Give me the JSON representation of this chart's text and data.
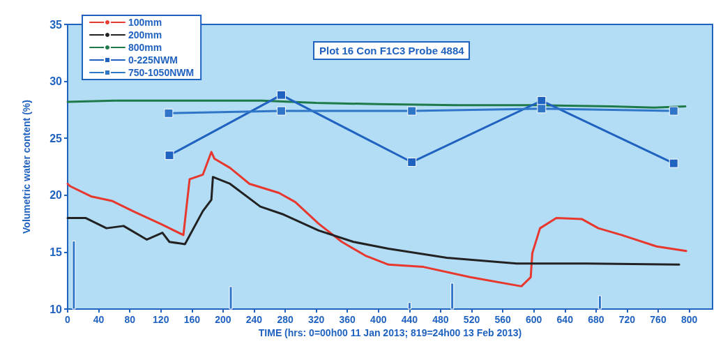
{
  "chart_data": {
    "type": "line",
    "title": "Plot 16 Con F1C3 Probe 4884",
    "xlabel": "TIME (hrs: 0=00h00 11 Jan 2013; 819=24h00 13 Feb 2013)",
    "ylabel": "Volumetric water content (%)",
    "xlim": [
      0,
      830
    ],
    "xticks": [
      0,
      40,
      80,
      120,
      160,
      200,
      240,
      280,
      320,
      360,
      400,
      440,
      480,
      520,
      560,
      600,
      640,
      680,
      720,
      760,
      800
    ],
    "ylim": [
      10,
      35
    ],
    "yticks": [
      10,
      15,
      20,
      25,
      30,
      35
    ],
    "grid": false,
    "legend": "top left",
    "marker": "none",
    "line_style": "solid",
    "series": [
      {
        "name": "100mm",
        "color": "#e8372c",
        "x": [
          0,
          3,
          30,
          57,
          84,
          122,
          149,
          157,
          174,
          185,
          189,
          209,
          234,
          272,
          293,
          323,
          353,
          383,
          413,
          458,
          518,
          584,
          596,
          598,
          608,
          629,
          662,
          683,
          713,
          758,
          796
        ],
        "values": [
          21.0,
          20.8,
          19.9,
          19.5,
          18.6,
          17.4,
          16.5,
          21.4,
          21.8,
          23.8,
          23.2,
          22.4,
          21.0,
          20.2,
          19.4,
          17.5,
          15.9,
          14.7,
          13.9,
          13.7,
          12.8,
          12.0,
          12.8,
          14.9,
          17.1,
          18.0,
          17.9,
          17.1,
          16.5,
          15.5,
          15.1
        ]
      },
      {
        "name": "200mm",
        "color": "#222222",
        "x": [
          0,
          23,
          50,
          72,
          102,
          122,
          131,
          151,
          174,
          185,
          187,
          209,
          248,
          278,
          323,
          368,
          413,
          488,
          578,
          668,
          787
        ],
        "values": [
          18.0,
          18.0,
          17.1,
          17.3,
          16.1,
          16.7,
          15.9,
          15.7,
          18.6,
          19.6,
          21.6,
          21.0,
          19.0,
          18.3,
          16.9,
          15.9,
          15.3,
          14.5,
          14.0,
          14.0,
          13.9
        ]
      },
      {
        "name": "800mm",
        "color": "#1f7a4a",
        "x": [
          0,
          60,
          120,
          180,
          220,
          250,
          320,
          400,
          500,
          600,
          700,
          755,
          795
        ],
        "values": [
          28.2,
          28.3,
          28.3,
          28.3,
          28.3,
          28.3,
          28.1,
          28.0,
          27.9,
          27.9,
          27.8,
          27.7,
          27.8
        ]
      },
      {
        "name": "0-225NWM",
        "color": "#1f62c0",
        "marker": "square",
        "x": [
          131,
          275,
          443,
          610,
          780
        ],
        "values": [
          23.5,
          28.8,
          22.9,
          28.3,
          22.8
        ]
      },
      {
        "name": "750-1050NWM",
        "color": "#2f75c8",
        "marker": "square",
        "x": [
          130,
          275,
          443,
          610,
          780
        ],
        "values": [
          27.2,
          27.4,
          27.4,
          27.6,
          27.4
        ]
      },
      {
        "type": "bar",
        "color": "#2f75c8",
        "x": [
          8,
          210,
          440,
          495,
          685
        ],
        "values": [
          16.0,
          12.0,
          10.6,
          12.3,
          11.2
        ]
      }
    ]
  }
}
